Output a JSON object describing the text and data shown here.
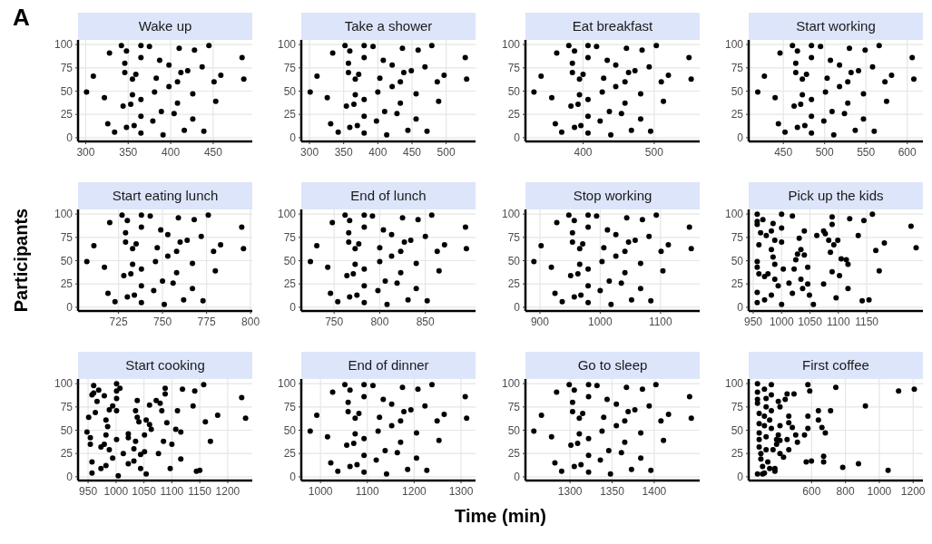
{
  "chart_data": [
    {
      "type": "scatter",
      "title": "Wake up",
      "annotations": [
        "A"
      ],
      "xlim": [
        291,
        496
      ],
      "xticks": [
        300,
        350,
        400,
        450
      ],
      "ylim": [
        -4,
        105
      ],
      "yticks": [
        0,
        25,
        50,
        75,
        100
      ],
      "grid": true,
      "marker": "circle",
      "color": "#000000",
      "x": [
        301,
        309,
        322,
        326,
        334,
        328,
        342,
        348,
        346,
        346,
        344,
        353,
        348,
        357,
        355,
        355,
        365,
        365,
        365,
        359,
        375,
        365,
        365,
        379,
        381,
        387,
        383,
        389,
        391,
        398,
        398,
        404,
        410,
        412,
        408,
        408,
        420,
        416,
        426,
        426,
        428,
        437,
        439,
        445,
        451,
        453,
        459,
        484,
        486
      ],
      "values": [
        49,
        66,
        43,
        15,
        6,
        91,
        99,
        93,
        80,
        70,
        34,
        36,
        11,
        13,
        63,
        46,
        23,
        99,
        86,
        68,
        98,
        41,
        5,
        18,
        49,
        83,
        64,
        28,
        3,
        78,
        55,
        26,
        96,
        70,
        60,
        37,
        72,
        8,
        47,
        20,
        94,
        76,
        7,
        99,
        60,
        39,
        67,
        86,
        63
      ]
    },
    {
      "type": "scatter",
      "title": "Take a shower",
      "xlim": [
        288,
        543
      ],
      "xticks": [
        300,
        350,
        400,
        450,
        500
      ],
      "ylim": [
        -4,
        105
      ],
      "yticks": [
        0,
        25,
        50,
        75,
        100
      ],
      "grid": true,
      "marker": "circle",
      "color": "#000000",
      "x": [
        301,
        311,
        326,
        331,
        342,
        334,
        352,
        359,
        357,
        357,
        354,
        365,
        359,
        370,
        367,
        367,
        380,
        380,
        380,
        372,
        393,
        380,
        380,
        398,
        400,
        408,
        403,
        410,
        413,
        421,
        421,
        428,
        436,
        438,
        433,
        433,
        449,
        444,
        456,
        456,
        459,
        469,
        472,
        479,
        487,
        489,
        497,
        528,
        530
      ],
      "values": [
        49,
        66,
        43,
        15,
        6,
        91,
        99,
        93,
        80,
        70,
        34,
        36,
        11,
        13,
        63,
        46,
        23,
        99,
        86,
        68,
        98,
        41,
        5,
        18,
        49,
        83,
        64,
        28,
        3,
        78,
        55,
        26,
        96,
        70,
        60,
        37,
        72,
        8,
        47,
        20,
        94,
        76,
        7,
        99,
        60,
        39,
        67,
        86,
        63
      ]
    },
    {
      "type": "scatter",
      "title": "Eat breakfast",
      "xlim": [
        319,
        564
      ],
      "xticks": [
        400,
        500
      ],
      "ylim": [
        -4,
        105
      ],
      "yticks": [
        0,
        25,
        50,
        75,
        100
      ],
      "grid": true,
      "marker": "circle",
      "color": "#000000",
      "x": [
        331,
        341,
        356,
        361,
        370,
        363,
        380,
        388,
        385,
        385,
        383,
        393,
        388,
        397,
        395,
        395,
        407,
        407,
        407,
        400,
        419,
        407,
        407,
        424,
        427,
        434,
        429,
        437,
        439,
        446,
        446,
        454,
        461,
        464,
        459,
        459,
        473,
        468,
        481,
        481,
        483,
        493,
        495,
        503,
        510,
        513,
        520,
        549,
        552
      ],
      "values": [
        49,
        66,
        43,
        15,
        6,
        91,
        99,
        93,
        80,
        70,
        34,
        36,
        11,
        13,
        63,
        46,
        23,
        99,
        86,
        68,
        98,
        41,
        5,
        18,
        49,
        83,
        64,
        28,
        3,
        78,
        55,
        26,
        96,
        70,
        60,
        37,
        72,
        8,
        47,
        20,
        94,
        76,
        7,
        99,
        60,
        39,
        67,
        86,
        63
      ]
    },
    {
      "type": "scatter",
      "title": "Start working",
      "xlim": [
        408,
        619
      ],
      "xticks": [
        450,
        500,
        550,
        600
      ],
      "ylim": [
        -4,
        105
      ],
      "yticks": [
        0,
        25,
        50,
        75,
        100
      ],
      "grid": true,
      "marker": "circle",
      "color": "#000000",
      "x": [
        419,
        427,
        440,
        444,
        452,
        446,
        461,
        467,
        465,
        465,
        463,
        471,
        467,
        476,
        473,
        473,
        484,
        484,
        484,
        478,
        495,
        484,
        484,
        499,
        501,
        507,
        503,
        509,
        511,
        518,
        518,
        524,
        530,
        532,
        528,
        528,
        541,
        537,
        547,
        547,
        549,
        558,
        560,
        566,
        573,
        575,
        581,
        606,
        608
      ],
      "values": [
        49,
        66,
        43,
        15,
        6,
        91,
        99,
        93,
        80,
        70,
        34,
        36,
        11,
        13,
        63,
        46,
        23,
        99,
        86,
        68,
        98,
        41,
        5,
        18,
        49,
        83,
        64,
        28,
        3,
        78,
        55,
        26,
        96,
        70,
        60,
        37,
        72,
        8,
        47,
        20,
        94,
        76,
        7,
        99,
        60,
        39,
        67,
        86,
        63
      ]
    },
    {
      "type": "scatter",
      "title": "Start eating lunch",
      "ylabel": "Participants",
      "xlim": [
        702,
        801
      ],
      "xticks": [
        725,
        750,
        775,
        800
      ],
      "ylim": [
        -4,
        105
      ],
      "yticks": [
        0,
        25,
        50,
        75,
        100
      ],
      "grid": true,
      "marker": "circle",
      "color": "#000000",
      "x": [
        707,
        711,
        717,
        719,
        723,
        720,
        727,
        730,
        729,
        729,
        728,
        732,
        730,
        734,
        733,
        733,
        738,
        738,
        738,
        735,
        743,
        738,
        738,
        745,
        746,
        749,
        747,
        750,
        751,
        753,
        753,
        756,
        759,
        760,
        758,
        758,
        764,
        762,
        767,
        767,
        768,
        772,
        773,
        776,
        779,
        780,
        783,
        795,
        796
      ],
      "values": [
        49,
        66,
        43,
        15,
        6,
        91,
        99,
        93,
        80,
        70,
        34,
        36,
        11,
        13,
        63,
        46,
        23,
        99,
        86,
        68,
        98,
        41,
        5,
        18,
        49,
        83,
        64,
        28,
        3,
        78,
        55,
        26,
        96,
        70,
        60,
        37,
        72,
        8,
        47,
        20,
        94,
        76,
        7,
        99,
        60,
        39,
        67,
        86,
        63
      ]
    },
    {
      "type": "scatter",
      "title": "End of lunch",
      "xlim": [
        714,
        905
      ],
      "xticks": [
        750,
        800,
        850
      ],
      "ylim": [
        -4,
        105
      ],
      "yticks": [
        0,
        25,
        50,
        75,
        100
      ],
      "grid": true,
      "marker": "circle",
      "color": "#000000",
      "x": [
        724,
        731,
        743,
        746,
        754,
        748,
        762,
        767,
        766,
        766,
        764,
        771,
        767,
        775,
        773,
        773,
        783,
        783,
        783,
        777,
        792,
        783,
        783,
        798,
        800,
        804,
        800,
        806,
        808,
        813,
        813,
        819,
        825,
        827,
        823,
        823,
        834,
        831,
        840,
        840,
        842,
        850,
        852,
        857,
        863,
        865,
        871,
        894,
        895
      ],
      "values": [
        49,
        66,
        43,
        15,
        6,
        91,
        99,
        93,
        80,
        70,
        34,
        36,
        11,
        13,
        63,
        46,
        23,
        99,
        86,
        68,
        98,
        41,
        5,
        18,
        49,
        83,
        64,
        28,
        3,
        78,
        55,
        26,
        96,
        70,
        60,
        37,
        72,
        8,
        47,
        20,
        94,
        76,
        7,
        99,
        60,
        39,
        67,
        86,
        63
      ]
    },
    {
      "type": "scatter",
      "title": "Stop working",
      "xlim": [
        876,
        1165
      ],
      "xticks": [
        900,
        1000,
        1100
      ],
      "ylim": [
        -4,
        105
      ],
      "yticks": [
        0,
        25,
        50,
        75,
        100
      ],
      "grid": true,
      "marker": "circle",
      "color": "#000000",
      "x": [
        890,
        902,
        919,
        925,
        937,
        928,
        948,
        957,
        954,
        954,
        951,
        963,
        957,
        968,
        966,
        966,
        980,
        980,
        980,
        971,
        994,
        980,
        980,
        1000,
        1003,
        1012,
        1006,
        1015,
        1018,
        1026,
        1026,
        1035,
        1044,
        1047,
        1041,
        1041,
        1058,
        1052,
        1067,
        1067,
        1070,
        1081,
        1084,
        1093,
        1101,
        1104,
        1113,
        1148,
        1151
      ],
      "values": [
        49,
        66,
        43,
        15,
        6,
        91,
        99,
        93,
        80,
        70,
        34,
        36,
        11,
        13,
        63,
        46,
        23,
        99,
        86,
        68,
        98,
        41,
        5,
        18,
        49,
        83,
        64,
        28,
        3,
        78,
        55,
        26,
        96,
        70,
        60,
        37,
        72,
        8,
        47,
        20,
        94,
        76,
        7,
        99,
        60,
        39,
        67,
        86,
        63
      ]
    },
    {
      "type": "scatter",
      "title": "Pick up the kids",
      "xlim": [
        942,
        1249
      ],
      "xticks": [
        950,
        1000,
        1050,
        1100,
        1150
      ],
      "ylim": [
        -4,
        105
      ],
      "yticks": [
        0,
        25,
        50,
        75,
        100
      ],
      "grid": true,
      "marker": "circle",
      "color": "#000000",
      "x": [
        957,
        957,
        957,
        967,
        963,
        960,
        957,
        957,
        960,
        970,
        976,
        957,
        957,
        970,
        982,
        973,
        982,
        985,
        988,
        982,
        985,
        988,
        988,
        994,
        1000,
        1000,
        1000,
        1003,
        1000,
        1019,
        1013,
        1019,
        1022,
        1025,
        1028,
        1031,
        1034,
        1040,
        1040,
        1034,
        1037,
        1046,
        1046,
        1049,
        1056,
        1062,
        1074,
        1077,
        1083,
        1086,
        1089,
        1089,
        1092,
        1074,
        1089,
        1099,
        1102,
        1096,
        1105,
        1114,
        1117,
        1117,
        1120,
        1135,
        1145,
        1142,
        1154,
        1160,
        1166,
        1172,
        1181,
        1228,
        1237
      ],
      "values": [
        100,
        92,
        89,
        94,
        80,
        67,
        49,
        43,
        36,
        33,
        36,
        16,
        5,
        8,
        13,
        77,
        82,
        90,
        72,
        62,
        54,
        46,
        30,
        23,
        100,
        85,
        70,
        41,
        3,
        98,
        26,
        15,
        41,
        51,
        57,
        74,
        62,
        82,
        56,
        30,
        20,
        25,
        43,
        13,
        3,
        77,
        82,
        79,
        72,
        59,
        97,
        89,
        67,
        25,
        38,
        72,
        34,
        10,
        52,
        51,
        46,
        20,
        95,
        77,
        93,
        7,
        8,
        100,
        61,
        39,
        69,
        87,
        64
      ]
    },
    {
      "type": "scatter",
      "title": "Start cooking",
      "xlim": [
        932,
        1244
      ],
      "xticks": [
        950,
        1000,
        1050,
        1100,
        1150,
        1200
      ],
      "ylim": [
        -4,
        105
      ],
      "yticks": [
        0,
        25,
        50,
        75,
        100
      ],
      "grid": true,
      "marker": "circle",
      "color": "#000000",
      "x": [
        948,
        951,
        954,
        954,
        957,
        957,
        960,
        957,
        960,
        963,
        966,
        969,
        973,
        973,
        979,
        979,
        982,
        982,
        985,
        982,
        988,
        988,
        994,
        994,
        1001,
        1001,
        1001,
        1001,
        1001,
        1004,
        1007,
        1013,
        1022,
        1022,
        1022,
        1032,
        1032,
        1035,
        1035,
        1038,
        1038,
        1041,
        1044,
        1044,
        1051,
        1051,
        1054,
        1054,
        1060,
        1063,
        1060,
        1072,
        1079,
        1082,
        1076,
        1085,
        1088,
        1088,
        1091,
        1097,
        1100,
        1107,
        1110,
        1116,
        1116,
        1119,
        1141,
        1138,
        1144,
        1150,
        1157,
        1160,
        1169,
        1182,
        1225,
        1232
      ],
      "values": [
        48,
        64,
        42,
        35,
        16,
        4,
        90,
        88,
        98,
        69,
        81,
        93,
        32,
        9,
        87,
        35,
        12,
        61,
        54,
        45,
        72,
        29,
        76,
        20,
        100,
        92,
        84,
        71,
        40,
        1,
        95,
        25,
        46,
        42,
        14,
        17,
        30,
        38,
        71,
        82,
        64,
        59,
        24,
        9,
        45,
        27,
        3,
        61,
        56,
        51,
        77,
        82,
        79,
        71,
        25,
        38,
        95,
        89,
        58,
        9,
        35,
        51,
        71,
        48,
        19,
        94,
        92,
        76,
        6,
        7,
        99,
        59,
        38,
        66,
        85,
        63
      ]
    },
    {
      "type": "scatter",
      "title": "End of dinner",
      "xlabel": "Time (min)",
      "xlim": [
        959,
        1331
      ],
      "xticks": [
        1000,
        1100,
        1200,
        1300
      ],
      "ylim": [
        -4,
        105
      ],
      "yticks": [
        0,
        25,
        50,
        75,
        100
      ],
      "grid": true,
      "marker": "circle",
      "color": "#000000",
      "x": [
        978,
        992,
        1015,
        1022,
        1037,
        1026,
        1052,
        1063,
        1059,
        1059,
        1056,
        1071,
        1063,
        1078,
        1074,
        1074,
        1093,
        1093,
        1093,
        1082,
        1112,
        1093,
        1093,
        1119,
        1123,
        1134,
        1126,
        1138,
        1141,
        1152,
        1152,
        1164,
        1175,
        1178,
        1171,
        1171,
        1193,
        1186,
        1205,
        1205,
        1208,
        1223,
        1227,
        1238,
        1249,
        1253,
        1264,
        1309,
        1312
      ],
      "values": [
        49,
        66,
        43,
        15,
        6,
        91,
        99,
        93,
        80,
        70,
        34,
        36,
        11,
        13,
        63,
        46,
        23,
        99,
        86,
        68,
        98,
        41,
        5,
        18,
        49,
        83,
        64,
        28,
        3,
        78,
        55,
        26,
        96,
        70,
        60,
        37,
        72,
        8,
        47,
        20,
        94,
        76,
        7,
        99,
        60,
        39,
        67,
        86,
        63
      ]
    },
    {
      "type": "scatter",
      "title": "Go to sleep",
      "xlim": [
        1247,
        1454
      ],
      "xticks": [
        1300,
        1350,
        1400
      ],
      "ylim": [
        -4,
        105
      ],
      "yticks": [
        0,
        25,
        50,
        75,
        100
      ],
      "grid": true,
      "marker": "circle",
      "color": "#000000",
      "x": [
        1257,
        1266,
        1278,
        1282,
        1290,
        1284,
        1299,
        1305,
        1303,
        1303,
        1301,
        1309,
        1305,
        1313,
        1311,
        1311,
        1322,
        1322,
        1322,
        1315,
        1332,
        1322,
        1322,
        1336,
        1338,
        1344,
        1340,
        1346,
        1348,
        1355,
        1355,
        1361,
        1367,
        1369,
        1365,
        1365,
        1377,
        1373,
        1384,
        1384,
        1386,
        1394,
        1396,
        1402,
        1408,
        1411,
        1417,
        1442,
        1444
      ],
      "values": [
        49,
        66,
        43,
        15,
        6,
        91,
        99,
        93,
        80,
        70,
        34,
        36,
        11,
        13,
        63,
        46,
        23,
        99,
        86,
        68,
        98,
        41,
        5,
        18,
        49,
        83,
        64,
        28,
        3,
        78,
        55,
        26,
        96,
        70,
        60,
        37,
        72,
        8,
        47,
        20,
        94,
        76,
        7,
        99,
        60,
        39,
        67,
        86,
        63
      ]
    },
    {
      "type": "scatter",
      "title": "First coffee",
      "xlim": [
        228,
        1258
      ],
      "xticks": [
        600,
        800,
        1000,
        1200
      ],
      "ylim": [
        -4,
        105
      ],
      "yticks": [
        0,
        25,
        50,
        75,
        100
      ],
      "grid": true,
      "marker": "circle",
      "color": "#000000",
      "x": [
        280,
        280,
        280,
        280,
        290,
        290,
        290,
        290,
        290,
        300,
        300,
        310,
        310,
        280,
        321,
        321,
        331,
        331,
        321,
        321,
        331,
        331,
        341,
        352,
        362,
        362,
        362,
        352,
        362,
        372,
        383,
        383,
        393,
        393,
        403,
        413,
        413,
        403,
        413,
        413,
        434,
        444,
        455,
        455,
        465,
        465,
        465,
        486,
        496,
        506,
        516,
        558,
        578,
        589,
        578,
        578,
        568,
        599,
        640,
        640,
        661,
        671,
        671,
        681,
        712,
        743,
        784,
        877,
        918,
        1052,
        1114,
        1207
      ],
      "values": [
        100,
        91,
        83,
        79,
        68,
        57,
        47,
        40,
        32,
        25,
        19,
        11,
        3,
        3,
        4,
        94,
        84,
        75,
        65,
        55,
        43,
        29,
        16,
        9,
        99,
        88,
        71,
        61,
        52,
        29,
        9,
        6,
        40,
        35,
        81,
        75,
        55,
        45,
        39,
        25,
        21,
        83,
        89,
        40,
        29,
        65,
        58,
        53,
        89,
        45,
        37,
        45,
        99,
        92,
        65,
        52,
        16,
        17,
        71,
        61,
        53,
        22,
        16,
        47,
        71,
        96,
        10,
        14,
        76,
        7,
        92,
        94
      ]
    }
  ]
}
